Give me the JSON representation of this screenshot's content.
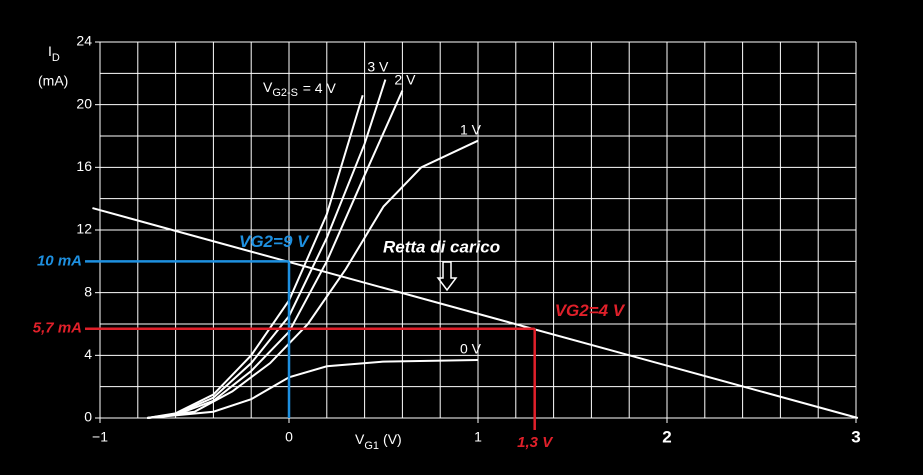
{
  "chart_data": {
    "type": "line",
    "y_label": {
      "main": "I",
      "sub": "D",
      "unit": "(mA)"
    },
    "x_label": {
      "main": "V",
      "sub": "G1",
      "unit": "(V)"
    },
    "xlim": [
      -1,
      3
    ],
    "ylim": [
      0,
      24
    ],
    "xticks": [
      {
        "value": -1,
        "label": "−1"
      },
      0,
      1,
      2,
      3
    ],
    "yticks": [
      0,
      4,
      8,
      12,
      16,
      20,
      24
    ],
    "x_gridlines": [
      -1,
      -0.8,
      -0.6,
      -0.4,
      -0.2,
      0,
      0.2,
      0.4,
      0.6,
      0.8,
      1,
      1.2,
      1.4,
      1.6,
      1.8,
      2,
      2.2,
      2.4,
      2.6,
      2.8,
      3
    ],
    "y_gridlines": [
      0,
      2,
      4,
      6,
      8,
      10,
      12,
      14,
      16,
      18,
      20,
      22,
      24
    ],
    "grid": true,
    "curve_label_prefix": {
      "main": "V",
      "sub": "G2-S"
    },
    "series": [
      {
        "name": "= 4 V",
        "color": "#ffffff",
        "x": [
          -0.75,
          -0.6,
          -0.4,
          -0.2,
          0,
          0.2,
          0.39
        ],
        "values": [
          0,
          0.3,
          1.5,
          4,
          7.5,
          13,
          20.6
        ]
      },
      {
        "name": "3 V",
        "color": "#ffffff",
        "x": [
          -0.75,
          -0.6,
          -0.4,
          -0.2,
          0,
          0.2,
          0.4,
          0.51
        ],
        "values": [
          0,
          0.25,
          1.3,
          3.5,
          6.5,
          11.5,
          17.5,
          21.6
        ]
      },
      {
        "name": "2 V",
        "color": "#ffffff",
        "x": [
          -0.75,
          -0.6,
          -0.4,
          -0.2,
          0,
          0.2,
          0.4,
          0.6
        ],
        "values": [
          0,
          0.2,
          1.1,
          3,
          5.5,
          10,
          15.5,
          20.9
        ]
      },
      {
        "name": "1 V",
        "color": "#ffffff",
        "x": [
          -0.75,
          -0.5,
          -0.3,
          -0.1,
          0.1,
          0.3,
          0.5,
          0.7,
          1
        ],
        "values": [
          0,
          0.4,
          1.7,
          3.5,
          6,
          9.5,
          13.5,
          16,
          17.7
        ]
      },
      {
        "name": "0 V",
        "color": "#ffffff",
        "x": [
          -0.75,
          -0.4,
          -0.2,
          0,
          0.2,
          0.5,
          1
        ],
        "values": [
          0,
          0.4,
          1.2,
          2.6,
          3.3,
          3.6,
          3.7
        ]
      }
    ],
    "load_line": {
      "label": "Retta di carico",
      "color": "#ffffff",
      "x": [
        -1.04,
        3.01
      ],
      "values": [
        13.4,
        0
      ]
    },
    "operating_points": [
      {
        "label": "VG2=9 V",
        "color": "#1e90e0",
        "x": 0,
        "y": 10,
        "y_label": "10 mA"
      },
      {
        "label": "VG2=4 V",
        "color": "#e0202a",
        "x": 1.3,
        "y": 5.7,
        "y_label": "5,7 mA",
        "x_label": "1,3 V"
      }
    ]
  }
}
